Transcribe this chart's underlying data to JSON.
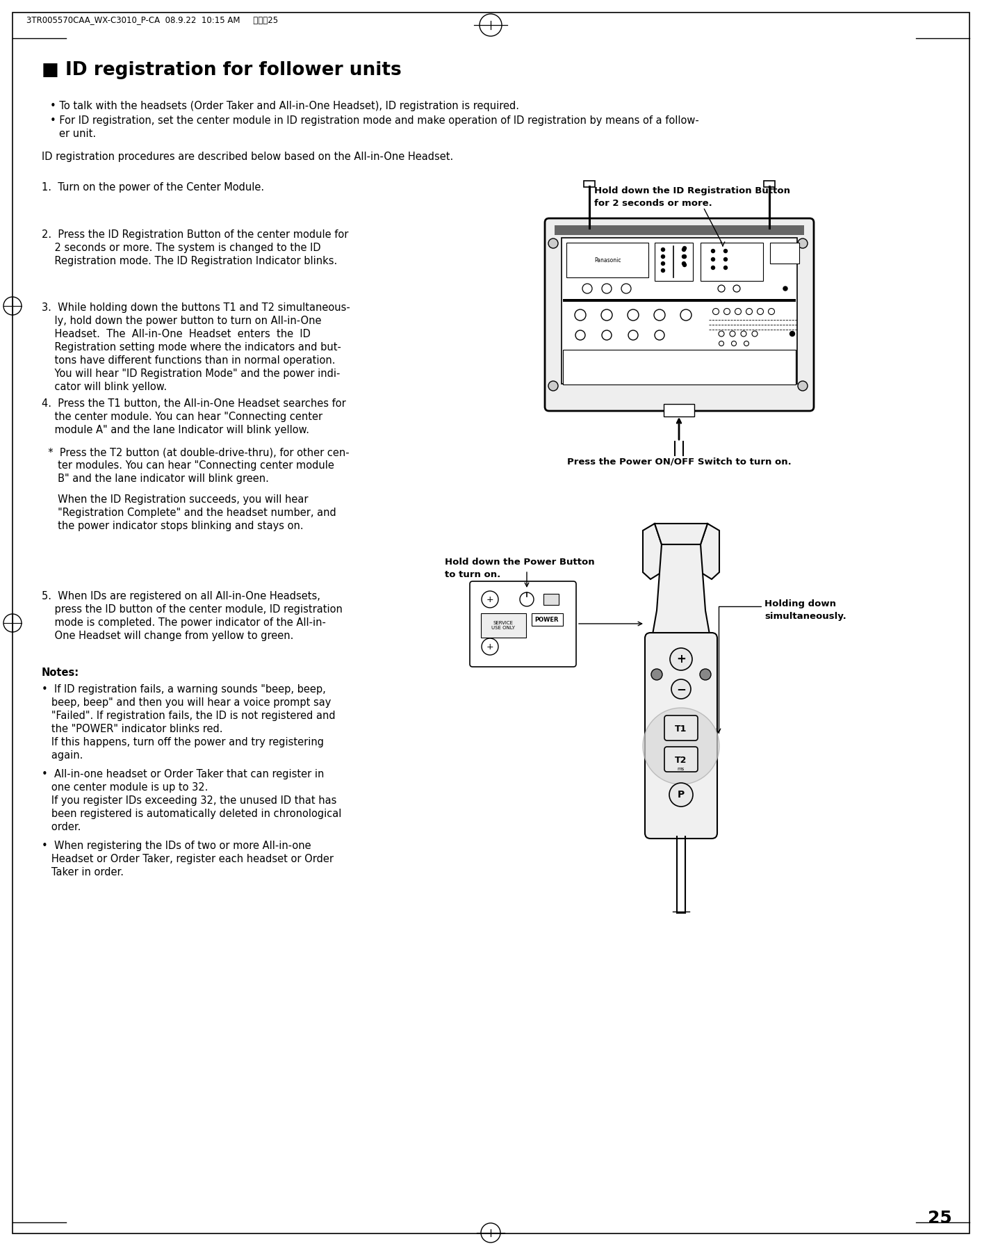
{
  "page_header": "3TR005570CAA_WX-C3010_P-CA  08.9.22  10:15 AM     ページ25",
  "page_number": "25",
  "title": "■ ID registration for follower units",
  "fig1_caption_line1": "Hold down the ID Registration Button",
  "fig1_caption_line2": "for 2 seconds or more.",
  "fig1_bottom_caption": "Press the Power ON/OFF Switch to turn on.",
  "fig2_caption_top_line1": "Hold down the Power Button",
  "fig2_caption_top_line2": "to turn on.",
  "fig2_caption_right_line1": "Holding down",
  "fig2_caption_right_line2": "simultaneously.",
  "fig2_label_power": "POWER",
  "fig2_label_service": "SERVICE\nUSE ONLY",
  "bg_color": "#ffffff",
  "text_color": "#000000"
}
